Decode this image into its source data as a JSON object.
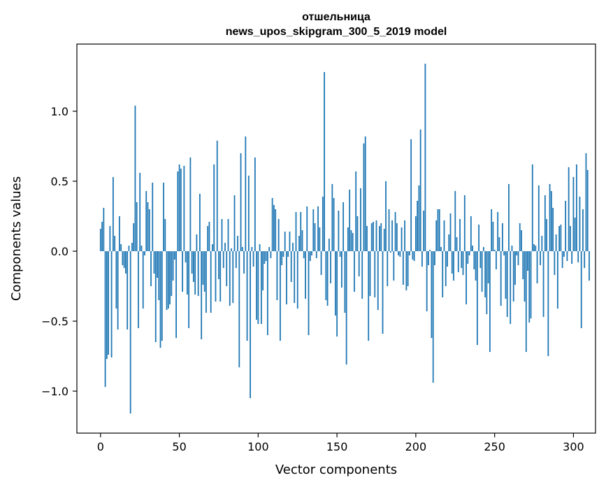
{
  "chart_data": {
    "type": "bar",
    "title_line1": "отшельница",
    "title_line2": "news_upos_skipgram_300_5_2019 model",
    "xlabel": "Vector components",
    "ylabel": "Components values",
    "xlim": [
      -15,
      314
    ],
    "ylim": [
      -1.3,
      1.48
    ],
    "xticks": [
      0,
      50,
      100,
      150,
      200,
      250,
      300
    ],
    "xtick_labels": [
      "0",
      "50",
      "100",
      "150",
      "200",
      "250",
      "300"
    ],
    "yticks": [
      -1.0,
      -0.5,
      0.0,
      0.5,
      1.0
    ],
    "ytick_labels": [
      "−1.0",
      "−0.5",
      "0.0",
      "0.5",
      "1.0"
    ],
    "bar_color": "#1f77b4",
    "values": [
      0.16,
      0.21,
      0.31,
      -0.97,
      -0.77,
      -0.74,
      0.18,
      -0.76,
      0.53,
      0.11,
      -0.41,
      -0.56,
      0.25,
      0.05,
      -0.1,
      -0.12,
      -0.16,
      -0.56,
      0.04,
      -1.16,
      0.06,
      0.2,
      1.04,
      0.35,
      -0.55,
      0.56,
      0.04,
      -0.41,
      -0.03,
      0.43,
      0.35,
      0.3,
      -0.25,
      0.49,
      -0.16,
      -0.65,
      -0.19,
      -0.35,
      -0.69,
      -0.64,
      0.49,
      0.23,
      -0.42,
      -0.41,
      -0.38,
      -0.32,
      -0.21,
      -0.06,
      -0.62,
      0.57,
      0.62,
      0.59,
      -0.29,
      0.61,
      -0.08,
      -0.31,
      -0.55,
      0.67,
      -0.16,
      -0.22,
      -0.31,
      0.12,
      -0.32,
      0.41,
      -0.63,
      -0.24,
      -0.29,
      -0.44,
      0.18,
      0.21,
      -0.44,
      0.05,
      0.62,
      -0.36,
      0.79,
      -0.2,
      -0.36,
      0.23,
      -0.12,
      0.06,
      -0.25,
      0.23,
      -0.39,
      0.02,
      -0.37,
      0.4,
      -0.12,
      0.11,
      -0.83,
      0.7,
      0.03,
      -0.16,
      0.82,
      -0.64,
      0.54,
      -1.05,
      0.03,
      -0.11,
      0.67,
      -0.49,
      -0.52,
      0.05,
      -0.52,
      -0.28,
      -0.09,
      -0.07,
      -0.6,
      0.03,
      -0.05,
      0.38,
      0.33,
      0.3,
      -0.35,
      0.23,
      -0.64,
      -0.1,
      -0.04,
      0.14,
      -0.38,
      -0.04,
      0.14,
      -0.22,
      0.06,
      -0.37,
      0.28,
      -0.41,
      0.11,
      0.28,
      0.15,
      -0.05,
      -0.34,
      0.32,
      -0.6,
      -0.07,
      -0.03,
      0.3,
      0.2,
      -0.05,
      0.32,
      0.17,
      -0.17,
      0.39,
      1.28,
      -0.35,
      -0.39,
      0.09,
      -0.23,
      0.48,
      0.38,
      -0.46,
      -0.61,
      0.29,
      -0.04,
      -0.26,
      0.35,
      -0.44,
      -0.81,
      0.17,
      0.44,
      0.15,
      0.13,
      -0.29,
      0.57,
      0.25,
      -0.18,
      0.45,
      -0.34,
      0.77,
      0.82,
      0.18,
      -0.64,
      -0.32,
      0.2,
      0.21,
      -0.33,
      0.22,
      -0.42,
      0.18,
      0.2,
      -0.59,
      0.16,
      0.5,
      -0.25,
      0.3,
      -0.01,
      0.22,
      -0.21,
      0.28,
      0.2,
      -0.03,
      -0.04,
      0.17,
      -0.24,
      0.22,
      -0.28,
      -0.25,
      -0.03,
      0.8,
      -0.06,
      -0.07,
      0.25,
      0.36,
      0.47,
      0.87,
      -0.11,
      0.29,
      1.34,
      -0.43,
      -0.1,
      0.01,
      -0.62,
      -0.94,
      -0.1,
      0.22,
      0.3,
      0.3,
      0.03,
      -0.33,
      0.22,
      -0.25,
      -0.11,
      0.12,
      0.27,
      -0.16,
      -0.21,
      0.43,
      0.1,
      -0.15,
      0.23,
      -0.12,
      -0.17,
      0.4,
      -0.38,
      -0.09,
      -0.03,
      0.25,
      0.04,
      -0.13,
      -0.21,
      -0.67,
      0.19,
      -0.12,
      -0.29,
      0.03,
      -0.33,
      -0.45,
      -0.23,
      -0.72,
      0.3,
      0.21,
      0.01,
      -0.13,
      0.28,
      0.1,
      -0.39,
      0.2,
      -0.03,
      -0.34,
      -0.47,
      0.48,
      -0.52,
      0.04,
      -0.36,
      -0.24,
      -0.03,
      -0.1,
      0.2,
      0.15,
      -0.2,
      -0.36,
      -0.72,
      -0.14,
      -0.51,
      -0.48,
      0.62,
      0.05,
      0.04,
      -0.23,
      0.47,
      -0.1,
      0.11,
      -0.47,
      0.4,
      0.23,
      -0.75,
      0.48,
      0.43,
      0.31,
      -0.17,
      0.12,
      -0.41,
      0.18,
      0.19,
      -0.12,
      -0.04,
      0.36,
      -0.07,
      0.6,
      0.18,
      -0.09,
      0.53,
      0.24,
      0.62,
      -0.08,
      0.39,
      -0.55,
      0.3,
      -0.12,
      0.7,
      0.58,
      -0.21
    ]
  }
}
